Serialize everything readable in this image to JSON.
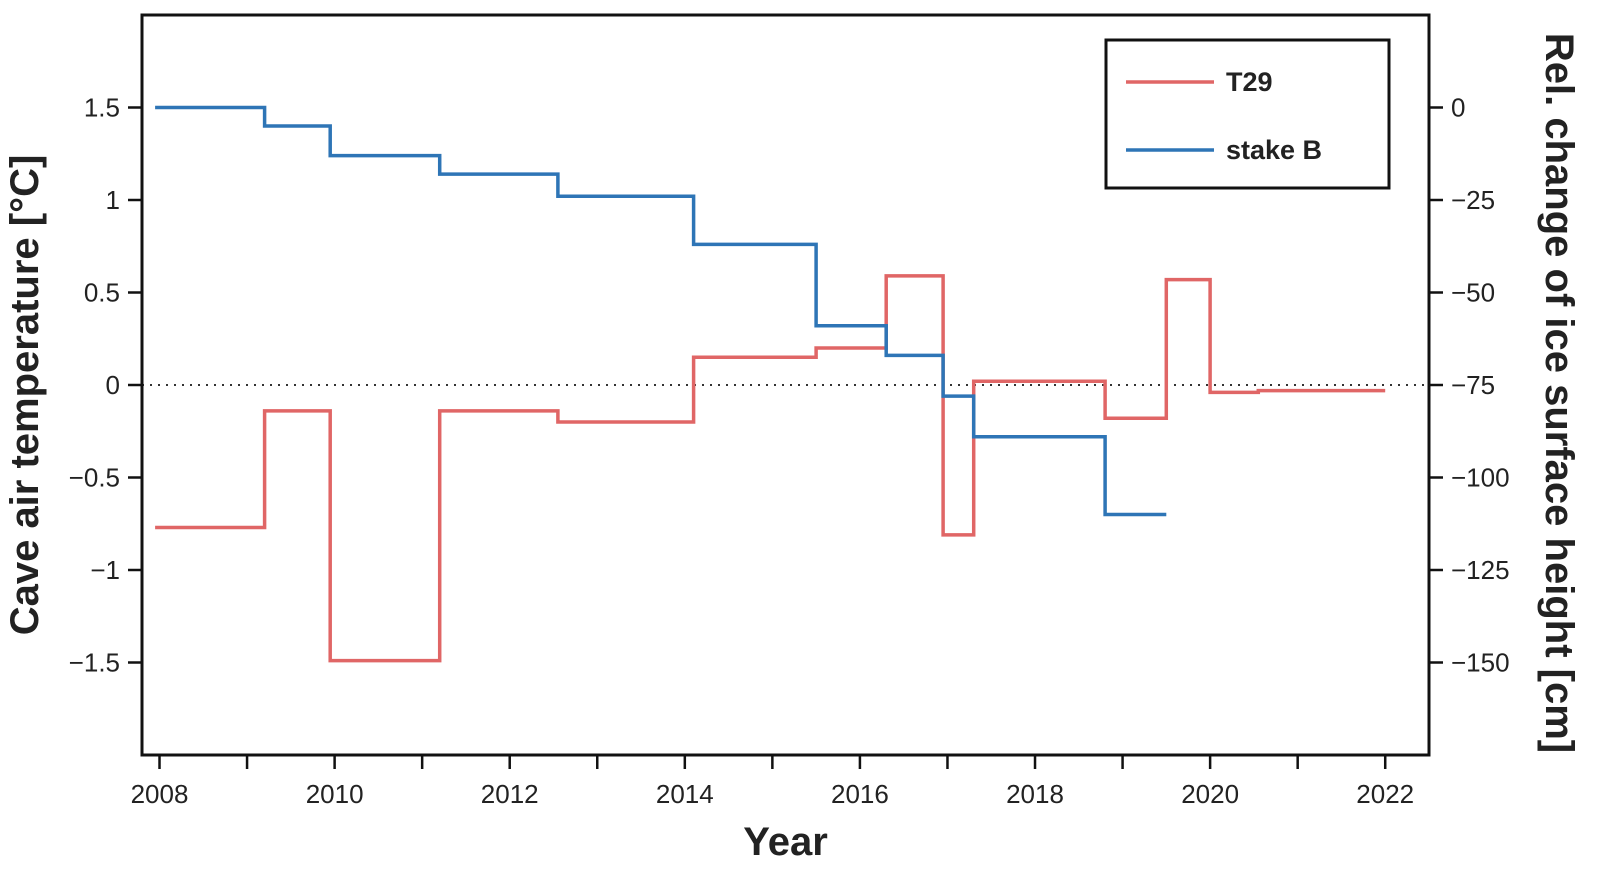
{
  "chart_data": {
    "type": "line",
    "step": true,
    "xlabel": "Year",
    "ylabel_left": "Cave air temperature [°C]",
    "ylabel_right": "Rel. change of ice surface height [cm]",
    "xlim": [
      2007.8,
      2022.5
    ],
    "x_ticks": [
      2008,
      2010,
      2012,
      2014,
      2016,
      2018,
      2020,
      2022
    ],
    "x_minor_ticks": [
      2009,
      2011,
      2013,
      2015,
      2017,
      2019,
      2021
    ],
    "x_tick_labels": [
      "2008",
      "2010",
      "2012",
      "2014",
      "2016",
      "2018",
      "2020",
      "2022"
    ],
    "ylim_left": [
      -2.0,
      2.0
    ],
    "y_left_ticks": [
      -1.5,
      -1,
      -0.5,
      0,
      0.5,
      1,
      1.5
    ],
    "y_left_tick_labels": [
      "−1.5",
      "−1",
      "−0.5",
      "0",
      "0.5",
      "1",
      "1.5"
    ],
    "ylim_right": [
      -175,
      25
    ],
    "y_right_ticks": [
      -150,
      -125,
      -100,
      -75,
      -50,
      -25,
      0
    ],
    "y_right_tick_labels": [
      "−150",
      "−125",
      "−100",
      "−75",
      "−50",
      "−25",
      "0"
    ],
    "reference_line": {
      "axis": "left",
      "y": 0,
      "style": "dotted"
    },
    "grid": false,
    "legend_position": "top-right",
    "series": [
      {
        "name": "T29",
        "axis": "left",
        "color": "#e06666",
        "steps": [
          {
            "x_start": 2007.95,
            "x_end": 2009.2,
            "y": -0.77
          },
          {
            "x_start": 2009.2,
            "x_end": 2009.95,
            "y": -0.14
          },
          {
            "x_start": 2009.95,
            "x_end": 2011.2,
            "y": -1.49
          },
          {
            "x_start": 2011.2,
            "x_end": 2012.55,
            "y": -0.14
          },
          {
            "x_start": 2012.55,
            "x_end": 2014.1,
            "y": -0.2
          },
          {
            "x_start": 2014.1,
            "x_end": 2015.5,
            "y": 0.15
          },
          {
            "x_start": 2015.5,
            "x_end": 2016.3,
            "y": 0.2
          },
          {
            "x_start": 2016.3,
            "x_end": 2016.95,
            "y": 0.59
          },
          {
            "x_start": 2016.95,
            "x_end": 2017.3,
            "y": -0.81
          },
          {
            "x_start": 2017.3,
            "x_end": 2018.8,
            "y": 0.02
          },
          {
            "x_start": 2018.8,
            "x_end": 2019.5,
            "y": -0.18
          },
          {
            "x_start": 2019.5,
            "x_end": 2020.0,
            "y": 0.57
          },
          {
            "x_start": 2020.0,
            "x_end": 2020.55,
            "y": -0.04
          },
          {
            "x_start": 2020.55,
            "x_end": 2022.0,
            "y": -0.03
          }
        ]
      },
      {
        "name": "stake B",
        "axis": "right",
        "color": "#2e75b6",
        "steps": [
          {
            "x_start": 2007.95,
            "x_end": 2009.2,
            "y": 0
          },
          {
            "x_start": 2009.2,
            "x_end": 2009.95,
            "y": -5
          },
          {
            "x_start": 2009.95,
            "x_end": 2011.2,
            "y": -13
          },
          {
            "x_start": 2011.2,
            "x_end": 2012.55,
            "y": -18
          },
          {
            "x_start": 2012.55,
            "x_end": 2014.1,
            "y": -24
          },
          {
            "x_start": 2014.1,
            "x_end": 2015.5,
            "y": -37
          },
          {
            "x_start": 2015.5,
            "x_end": 2016.3,
            "y": -59
          },
          {
            "x_start": 2016.3,
            "x_end": 2016.95,
            "y": -67
          },
          {
            "x_start": 2016.95,
            "x_end": 2017.3,
            "y": -78
          },
          {
            "x_start": 2017.3,
            "x_end": 2018.8,
            "y": -89
          },
          {
            "x_start": 2018.8,
            "x_end": 2019.5,
            "y": -110
          }
        ]
      }
    ]
  }
}
